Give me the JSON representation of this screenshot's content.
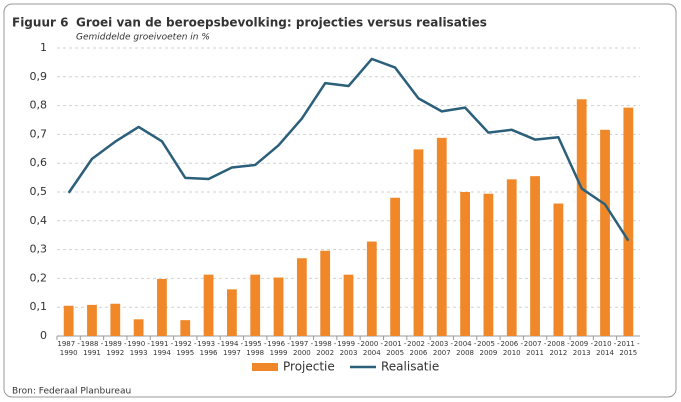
{
  "figure_label": "Figuur 6",
  "source": "Bron: Federaal Planbureau",
  "chart_data": {
    "type": "bar-line",
    "title": "Groei van de beroepsbevolking: projecties versus realisaties",
    "subtitle": "Gemiddelde groeivoeten in %",
    "categories": [
      "1987 - 1990",
      "1988 - 1991",
      "1989 - 1992",
      "1990 - 1993",
      "1991 - 1994",
      "1992 - 1995",
      "1993 - 1996",
      "1994 - 1997",
      "1995 - 1998",
      "1996 - 1999",
      "1997 - 2000",
      "1998 - 2002",
      "1999 - 2003",
      "2000 - 2004",
      "2001 - 2005",
      "2002 - 2006",
      "2003 - 2007",
      "2004 - 2008",
      "2005 - 2009",
      "2006 - 2010",
      "2007 - 2011",
      "2008 - 2012",
      "2009 - 2013",
      "2010 - 2014",
      "2011 - 2015"
    ],
    "series": [
      {
        "name": "Projectie",
        "type": "bar",
        "color": "#f0882a",
        "values": [
          0.105,
          0.108,
          0.112,
          0.058,
          0.198,
          0.055,
          0.213,
          0.162,
          0.213,
          0.203,
          0.27,
          0.296,
          0.213,
          0.328,
          0.48,
          0.648,
          0.688,
          0.5,
          0.494,
          0.544,
          0.555,
          0.46,
          0.822,
          0.716,
          0.793
        ]
      },
      {
        "name": "Realisatie",
        "type": "line",
        "color": "#2b5f7a",
        "values": [
          0.497,
          0.615,
          0.675,
          0.726,
          0.676,
          0.549,
          0.545,
          0.585,
          0.594,
          0.662,
          0.755,
          0.878,
          0.868,
          0.962,
          0.932,
          0.825,
          0.78,
          0.793,
          0.706,
          0.716,
          0.682,
          0.69,
          0.512,
          0.457,
          0.331
        ]
      }
    ],
    "ylim": [
      0,
      1
    ],
    "yticks": [
      0,
      {
        "value": 0.1,
        "label": "0,1"
      },
      {
        "value": 0.2,
        "label": "0,2"
      },
      {
        "value": 0.3,
        "label": "0,3"
      },
      {
        "value": 0.4,
        "label": "0,4"
      },
      {
        "value": 0.5,
        "label": "0,5"
      },
      {
        "value": 0.6,
        "label": "0,6"
      },
      {
        "value": 0.7,
        "label": "0,7"
      },
      {
        "value": 0.8,
        "label": "0,8"
      },
      {
        "value": 0.9,
        "label": "0,9"
      },
      1
    ],
    "grid": true
  }
}
